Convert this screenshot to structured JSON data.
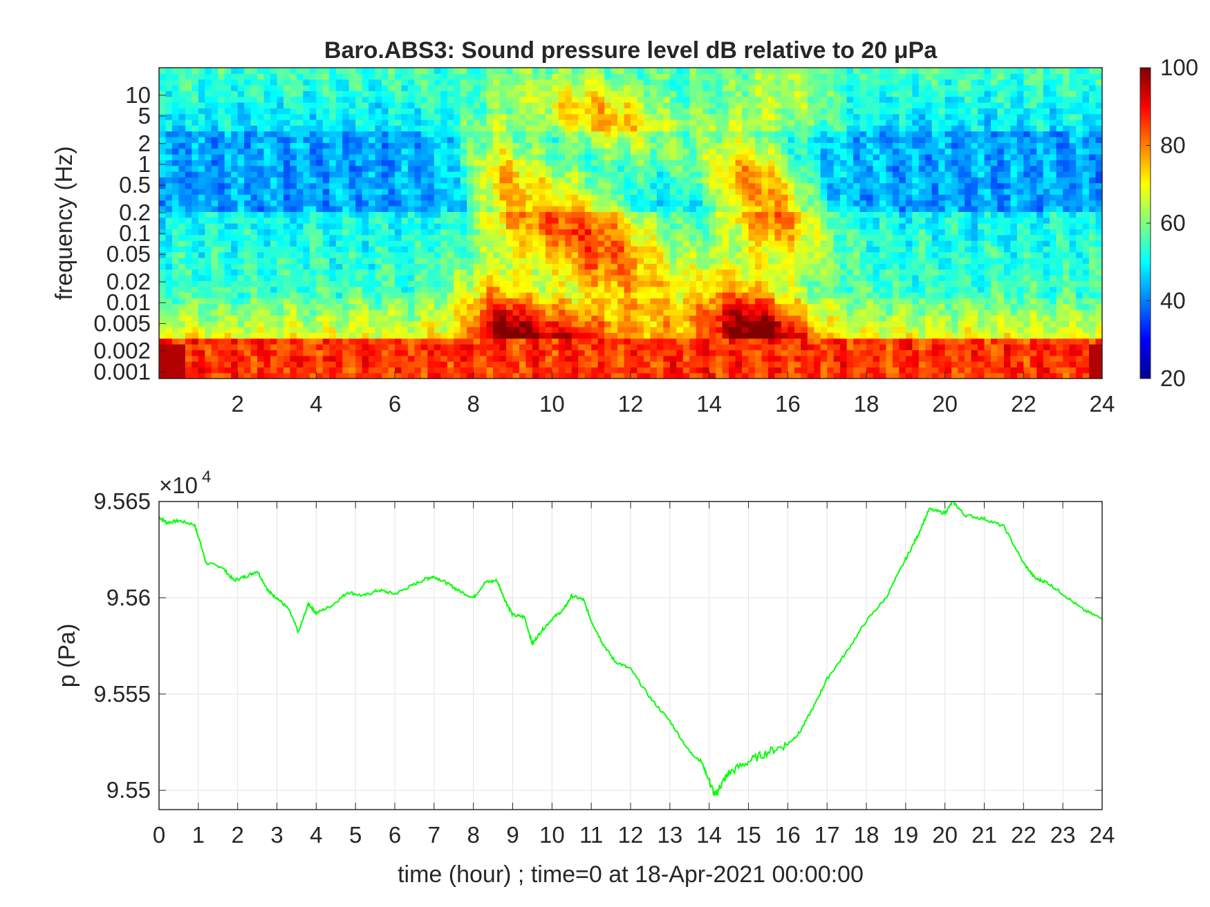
{
  "chart_data": [
    {
      "type": "heatmap",
      "title": "Baro.ABS3: Sound pressure level dB relative to 20 μPa",
      "ylabel": "frequency (Hz)",
      "xlim": [
        0,
        24
      ],
      "x_ticks": [
        2,
        4,
        6,
        8,
        10,
        12,
        14,
        16,
        18,
        20,
        22,
        24
      ],
      "x_tick_labels": [
        "2",
        "4",
        "6",
        "8",
        "10",
        "12",
        "14",
        "16",
        "18",
        "20",
        "22",
        "24"
      ],
      "y_scale": "log",
      "y_ticks": [
        0.001,
        0.002,
        0.005,
        0.01,
        0.02,
        0.05,
        0.1,
        0.2,
        0.5,
        1,
        2,
        5,
        10
      ],
      "y_tick_labels": [
        "0.001",
        "0.002",
        "0.005",
        "0.01",
        "0.02",
        "0.05",
        "0.1",
        "0.2",
        "0.5",
        "1",
        "2",
        "5",
        "10"
      ],
      "colormap": "jet",
      "colorbar": {
        "range": [
          20,
          100
        ],
        "ticks": [
          20,
          40,
          60,
          80,
          100
        ],
        "tick_labels": [
          "20",
          "40",
          "60",
          "80",
          "100"
        ]
      },
      "high_energy_periods_hour": [
        [
          8,
          12.5
        ],
        [
          14,
          17
        ]
      ]
    },
    {
      "type": "line",
      "xlabel": "time (hour) ; time=0 at 18-Apr-2021 00:00:00",
      "ylabel": "p (Pa)",
      "xlim": [
        0,
        24
      ],
      "ylim": [
        95490,
        95650
      ],
      "y_exponent_label": "×10",
      "y_exponent_power": "4",
      "x_ticks": [
        0,
        1,
        2,
        3,
        4,
        5,
        6,
        7,
        8,
        9,
        10,
        11,
        12,
        13,
        14,
        15,
        16,
        17,
        18,
        19,
        20,
        21,
        22,
        23,
        24
      ],
      "x_tick_labels": [
        "0",
        "1",
        "2",
        "3",
        "4",
        "5",
        "6",
        "7",
        "8",
        "9",
        "10",
        "11",
        "12",
        "13",
        "14",
        "15",
        "16",
        "17",
        "18",
        "19",
        "20",
        "21",
        "22",
        "23",
        "24"
      ],
      "y_ticks": [
        95500,
        95550,
        95600,
        95650
      ],
      "y_tick_labels": [
        "9.55",
        "9.555",
        "9.56",
        "9.565"
      ],
      "grid": true,
      "line_color": "#00ff00",
      "series": [
        {
          "x": [
            0,
            0.2,
            0.5,
            0.9,
            1.0,
            1.2,
            1.6,
            1.9,
            2.2,
            2.5,
            2.8,
            3.0,
            3.3,
            3.55,
            3.8,
            4.0,
            4.4,
            4.8,
            5.2,
            5.6,
            6.0,
            6.4,
            6.8,
            7.0,
            7.3,
            7.6,
            8.0,
            8.3,
            8.6,
            8.8,
            9.0,
            9.3,
            9.5,
            9.7,
            10.0,
            10.3,
            10.5,
            10.8,
            11.0,
            11.3,
            11.6,
            12.0,
            12.5,
            13.0,
            13.5,
            13.8,
            14.0,
            14.15,
            14.3,
            14.5,
            15.0,
            15.5,
            16.0,
            16.3,
            16.7,
            17.0,
            17.5,
            18.0,
            18.5,
            19.0,
            19.3,
            19.6,
            20.0,
            20.2,
            20.5,
            21.0,
            21.5,
            22.0,
            22.3,
            22.6,
            23.0,
            23.5,
            24.0
          ],
          "y": [
            95642,
            95639,
            95640,
            95638,
            95632,
            95618,
            95616,
            95609,
            95611,
            95614,
            95603,
            95600,
            95594,
            95582,
            95597,
            95592,
            95596,
            95603,
            95601,
            95604,
            95602,
            95606,
            95610,
            95611,
            95608,
            95604,
            95600,
            95608,
            95609,
            95599,
            95591,
            95590,
            95576,
            95582,
            95589,
            95594,
            95601,
            95599,
            95588,
            95576,
            95567,
            95563,
            95548,
            95536,
            95520,
            95515,
            95505,
            95497,
            95503,
            95509,
            95515,
            95520,
            95524,
            95530,
            95545,
            95558,
            95572,
            95588,
            95600,
            95620,
            95632,
            95646,
            95644,
            95650,
            95643,
            95641,
            95637,
            95618,
            95610,
            95608,
            95602,
            95594,
            95589
          ]
        }
      ]
    }
  ]
}
